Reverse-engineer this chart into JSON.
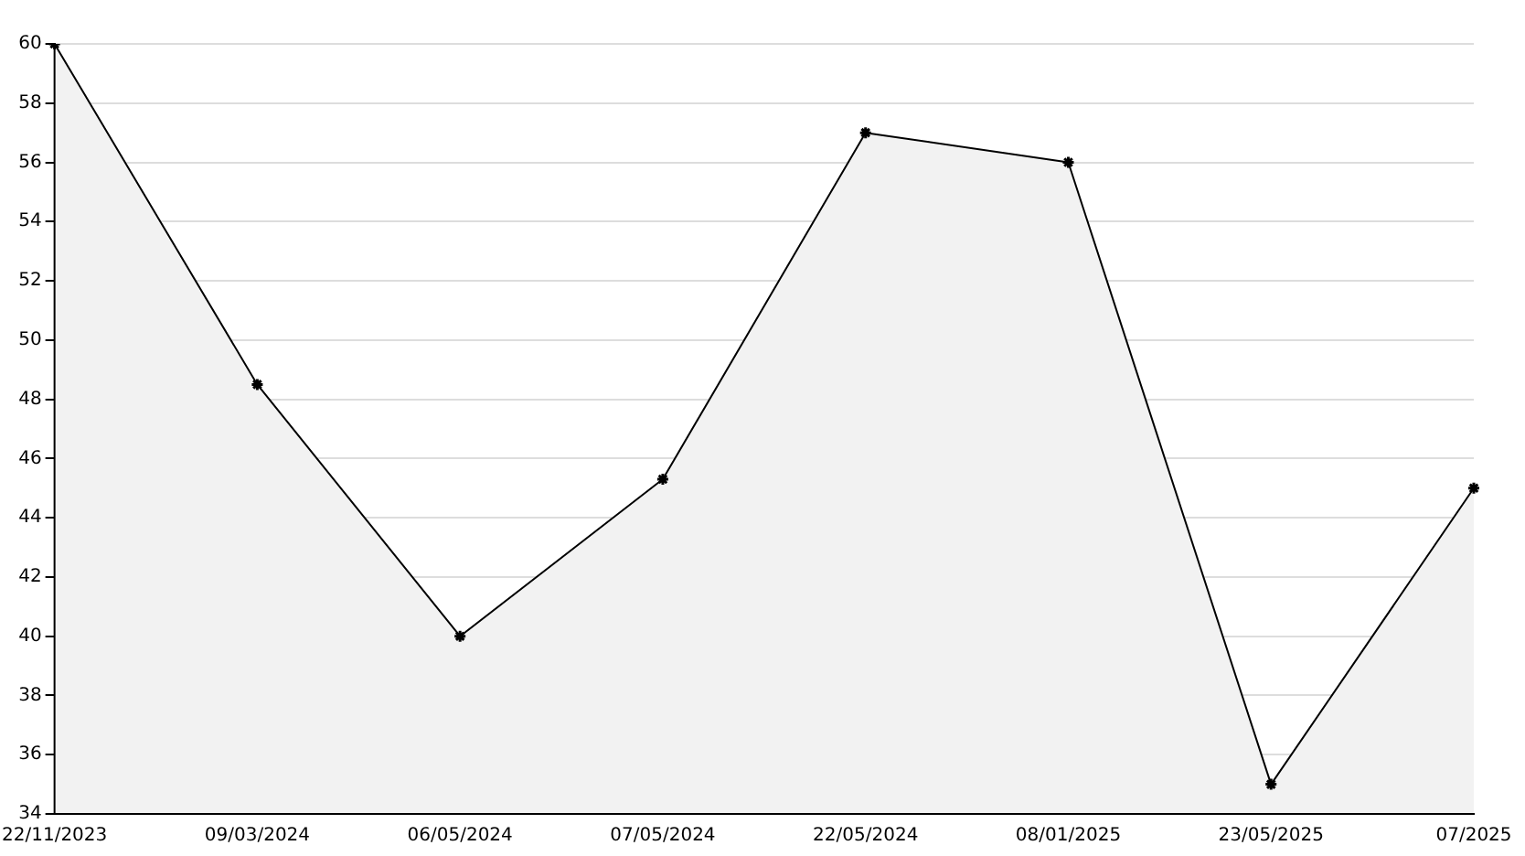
{
  "chart_data": {
    "type": "area",
    "categories": [
      "22/11/2023",
      "09/03/2024",
      "06/05/2024",
      "07/05/2024",
      "22/05/2024",
      "08/01/2025",
      "23/05/2025",
      "07/2025"
    ],
    "series": [
      {
        "color": "#000000",
        "values": [
          60,
          48.5,
          40,
          45.3,
          57,
          56,
          35,
          45
        ]
      }
    ],
    "ylim": [
      34,
      60
    ],
    "yticks": [
      34,
      36,
      38,
      40,
      42,
      44,
      46,
      48,
      50,
      52,
      54,
      56,
      58,
      60
    ],
    "grid": "y",
    "legend": false,
    "marker": "cross",
    "line_style": "solid"
  }
}
